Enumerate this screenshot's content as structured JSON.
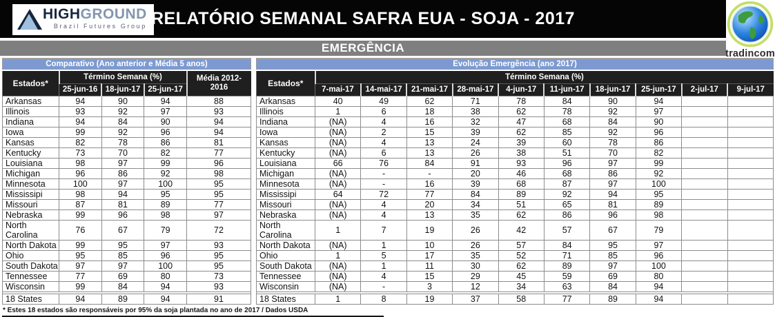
{
  "header": {
    "title": "RELATÓRIO SEMANAL SAFRA EUA - SOJA - 2017",
    "logo_high": "HIGH",
    "logo_ground": "GROUND",
    "logo_subtitle": "Brazil Futures Group",
    "right_logo_text": "tradincom"
  },
  "section_title": "EMERGÊNCIA",
  "colors": {
    "accent_blue": "#7c9ad1",
    "section_gray": "#7f7f7f",
    "table_header_dark": "#1f1f1f",
    "grid_gray": "#8c8c8c"
  },
  "comparativo": {
    "title": "Comparativo (Ano anterior e Média 5 anos)",
    "state_col_header": "Estados*",
    "group_header": "Término Semana (%)",
    "date_columns": [
      "25-jun-16",
      "18-jun-17",
      "25-jun-17"
    ],
    "avg_col_header": "Média 2012-2016",
    "rows": [
      {
        "state": "Arkansas",
        "values": [
          "94",
          "90",
          "94",
          "88"
        ]
      },
      {
        "state": "Illinois",
        "values": [
          "93",
          "92",
          "97",
          "93"
        ]
      },
      {
        "state": "Indiana",
        "values": [
          "94",
          "84",
          "90",
          "94"
        ]
      },
      {
        "state": "Iowa",
        "values": [
          "99",
          "92",
          "96",
          "94"
        ]
      },
      {
        "state": "Kansas",
        "values": [
          "82",
          "78",
          "86",
          "81"
        ]
      },
      {
        "state": "Kentucky",
        "values": [
          "73",
          "70",
          "82",
          "77"
        ]
      },
      {
        "state": "Louisiana",
        "values": [
          "98",
          "97",
          "99",
          "96"
        ]
      },
      {
        "state": "Michigan",
        "values": [
          "96",
          "86",
          "92",
          "98"
        ]
      },
      {
        "state": "Minnesota",
        "values": [
          "100",
          "97",
          "100",
          "95"
        ]
      },
      {
        "state": "Mississipi",
        "values": [
          "98",
          "94",
          "95",
          "95"
        ]
      },
      {
        "state": "Missouri",
        "values": [
          "87",
          "81",
          "89",
          "77"
        ]
      },
      {
        "state": "Nebraska",
        "values": [
          "99",
          "96",
          "98",
          "97"
        ]
      },
      {
        "state": "North Carolina",
        "values": [
          "76",
          "67",
          "79",
          "72"
        ]
      },
      {
        "state": "North Dakota",
        "values": [
          "99",
          "95",
          "97",
          "93"
        ]
      },
      {
        "state": "Ohio",
        "values": [
          "95",
          "85",
          "96",
          "95"
        ]
      },
      {
        "state": "South Dakota",
        "values": [
          "97",
          "97",
          "100",
          "95"
        ]
      },
      {
        "state": "Tennessee",
        "values": [
          "77",
          "69",
          "80",
          "73"
        ]
      },
      {
        "state": "Wisconsin",
        "values": [
          "99",
          "84",
          "94",
          "93"
        ]
      }
    ],
    "total_row": {
      "state": "18 States",
      "values": [
        "94",
        "89",
        "94",
        "91"
      ]
    },
    "footnote": "* Estes 18 estados são responsáveis por 95% da soja plantada no ano de 2017 / Dados USDA"
  },
  "evolucao": {
    "title": "Evolução Emergência (ano 2017)",
    "state_col_header": "Estados*",
    "group_header": "Término Semana (%)",
    "date_columns": [
      "7-mai-17",
      "14-mai-17",
      "21-mai-17",
      "28-mai-17",
      "4-jun-17",
      "11-jun-17",
      "18-jun-17",
      "25-jun-17",
      "2-jul-17",
      "9-jul-17"
    ],
    "rows": [
      {
        "state": "Arkansas",
        "values": [
          "40",
          "49",
          "62",
          "71",
          "78",
          "84",
          "90",
          "94",
          "",
          ""
        ]
      },
      {
        "state": "Illinois",
        "values": [
          "1",
          "6",
          "18",
          "38",
          "62",
          "78",
          "92",
          "97",
          "",
          ""
        ]
      },
      {
        "state": "Indiana",
        "values": [
          "(NA)",
          "4",
          "16",
          "32",
          "47",
          "68",
          "84",
          "90",
          "",
          ""
        ]
      },
      {
        "state": "Iowa",
        "values": [
          "(NA)",
          "2",
          "15",
          "39",
          "62",
          "85",
          "92",
          "96",
          "",
          ""
        ]
      },
      {
        "state": "Kansas",
        "values": [
          "(NA)",
          "4",
          "13",
          "24",
          "39",
          "60",
          "78",
          "86",
          "",
          ""
        ]
      },
      {
        "state": "Kentucky",
        "values": [
          "(NA)",
          "6",
          "13",
          "26",
          "38",
          "51",
          "70",
          "82",
          "",
          ""
        ]
      },
      {
        "state": "Louisiana",
        "values": [
          "66",
          "76",
          "84",
          "91",
          "93",
          "96",
          "97",
          "99",
          "",
          ""
        ]
      },
      {
        "state": "Michigan",
        "values": [
          "(NA)",
          "-",
          "-",
          "20",
          "46",
          "68",
          "86",
          "92",
          "",
          ""
        ]
      },
      {
        "state": "Minnesota",
        "values": [
          "(NA)",
          "-",
          "16",
          "39",
          "68",
          "87",
          "97",
          "100",
          "",
          ""
        ]
      },
      {
        "state": "Mississipi",
        "values": [
          "64",
          "72",
          "77",
          "84",
          "89",
          "92",
          "94",
          "95",
          "",
          ""
        ]
      },
      {
        "state": "Missouri",
        "values": [
          "(NA)",
          "4",
          "20",
          "34",
          "51",
          "65",
          "81",
          "89",
          "",
          ""
        ]
      },
      {
        "state": "Nebraska",
        "values": [
          "(NA)",
          "4",
          "13",
          "35",
          "62",
          "86",
          "96",
          "98",
          "",
          ""
        ]
      },
      {
        "state": "North Carolina",
        "values": [
          "1",
          "7",
          "19",
          "26",
          "42",
          "57",
          "67",
          "79",
          "",
          ""
        ]
      },
      {
        "state": "North Dakota",
        "values": [
          "(NA)",
          "1",
          "10",
          "26",
          "57",
          "84",
          "95",
          "97",
          "",
          ""
        ]
      },
      {
        "state": "Ohio",
        "values": [
          "1",
          "5",
          "17",
          "35",
          "52",
          "71",
          "85",
          "96",
          "",
          ""
        ]
      },
      {
        "state": "South Dakota",
        "values": [
          "(NA)",
          "1",
          "11",
          "30",
          "62",
          "89",
          "97",
          "100",
          "",
          ""
        ]
      },
      {
        "state": "Tennessee",
        "values": [
          "(NA)",
          "4",
          "15",
          "29",
          "45",
          "59",
          "69",
          "80",
          "",
          ""
        ]
      },
      {
        "state": "Wisconsin",
        "values": [
          "(NA)",
          "-",
          "3",
          "12",
          "34",
          "63",
          "84",
          "94",
          "",
          ""
        ]
      }
    ],
    "total_row": {
      "state": "18 States",
      "values": [
        "1",
        "8",
        "19",
        "37",
        "58",
        "77",
        "89",
        "94",
        "",
        ""
      ]
    }
  }
}
